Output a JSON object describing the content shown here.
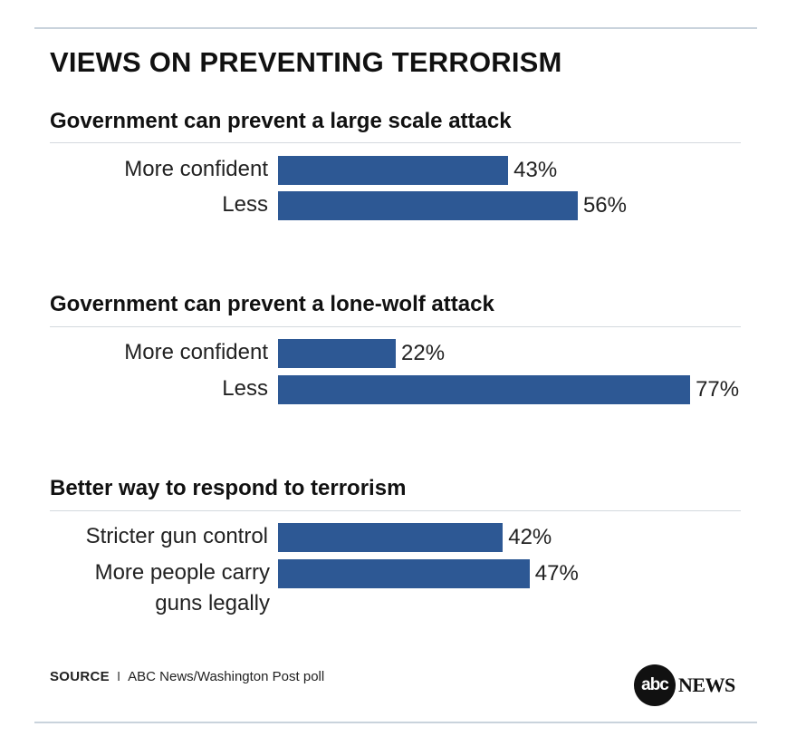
{
  "chart_data": {
    "type": "bar",
    "orientation": "horizontal",
    "title": "VIEWS ON PREVENTING TERRORISM",
    "xlim": [
      0,
      100
    ],
    "unit": "%",
    "groups": [
      {
        "title": "Government can prevent a large scale attack",
        "categories": [
          "More confident",
          "Less"
        ],
        "values": [
          43,
          56
        ],
        "labels": [
          "43%",
          "56%"
        ]
      },
      {
        "title": "Government can prevent a lone-wolf attack",
        "categories": [
          "More confident",
          "Less"
        ],
        "values": [
          22,
          77
        ],
        "labels": [
          "22%",
          "77%"
        ]
      },
      {
        "title": "Better way to respond to terrorism",
        "categories": [
          "Stricter gun control",
          "More people carry guns legally"
        ],
        "values": [
          42,
          47
        ],
        "labels": [
          "42%",
          "47%"
        ]
      }
    ],
    "bar_color": "#2d5894"
  },
  "footer": {
    "source_label": "SOURCE",
    "separator": "I",
    "source_text": "ABC News/Washington Post poll",
    "logo_mark": "abc",
    "logo_text": "NEWS"
  }
}
